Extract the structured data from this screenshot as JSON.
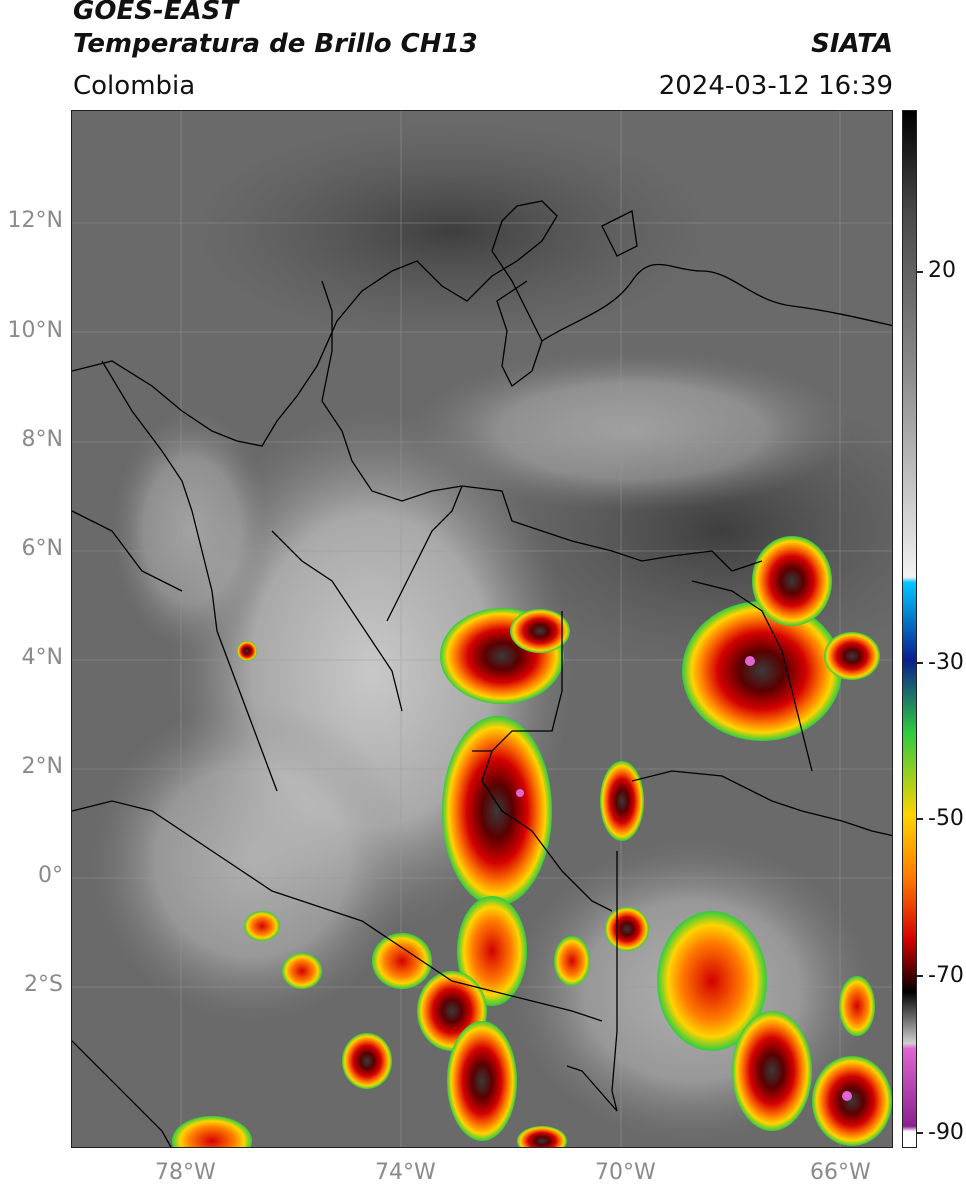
{
  "header": {
    "satellite": "GOES-EAST",
    "product": "Temperatura de Brillo CH13",
    "region": "Colombia",
    "agency": "SIATA",
    "datetime": "2024-03-12 16:39"
  },
  "axes": {
    "latitude_labels": [
      "12°N",
      "10°N",
      "8°N",
      "6°N",
      "4°N",
      "2°N",
      "0°",
      "2°S"
    ],
    "longitude_labels": [
      "78°W",
      "74°W",
      "70°W",
      "66°W"
    ]
  },
  "colorbar": {
    "tick_labels": [
      "20",
      "-30",
      "-50",
      "-70",
      "-90"
    ],
    "colors": {
      "warm_gray": "#4a4a4a",
      "light": "#f2f2f2",
      "cyan": "#00c8ff",
      "blue": "#0a1f8f",
      "green": "#2ecc40",
      "yellow": "#ffd400",
      "orange": "#ff7a00",
      "red": "#d40000",
      "dark_red": "#5a0000",
      "black": "#000000",
      "pink": "#e066d0",
      "purple": "#8a2090"
    }
  }
}
